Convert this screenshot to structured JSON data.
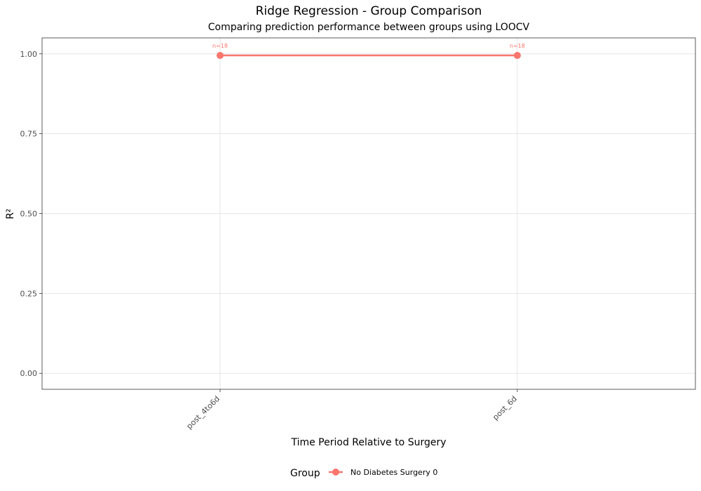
{
  "chart_data": {
    "type": "line",
    "title": "Ridge Regression - Group Comparison",
    "subtitle": "Comparing prediction performance between groups using LOOCV",
    "xlabel": "Time Period Relative to Surgery",
    "ylabel": "R²",
    "categories": [
      "post_4to6d",
      "post_6d"
    ],
    "ylim": [
      -0.05,
      1.05
    ],
    "yticks": [
      0.0,
      0.25,
      0.5,
      0.75,
      1.0
    ],
    "ytick_labels": [
      "0.00",
      "0.25",
      "0.50",
      "0.75",
      "1.00"
    ],
    "grid": true,
    "legend": {
      "title": "Group",
      "placement": "bottom"
    },
    "series": [
      {
        "name": "No Diabetes Surgery 0",
        "color": "#F8766D",
        "values": [
          0.995,
          0.995
        ],
        "point_labels": [
          "n=18",
          "n=18"
        ]
      }
    ]
  }
}
